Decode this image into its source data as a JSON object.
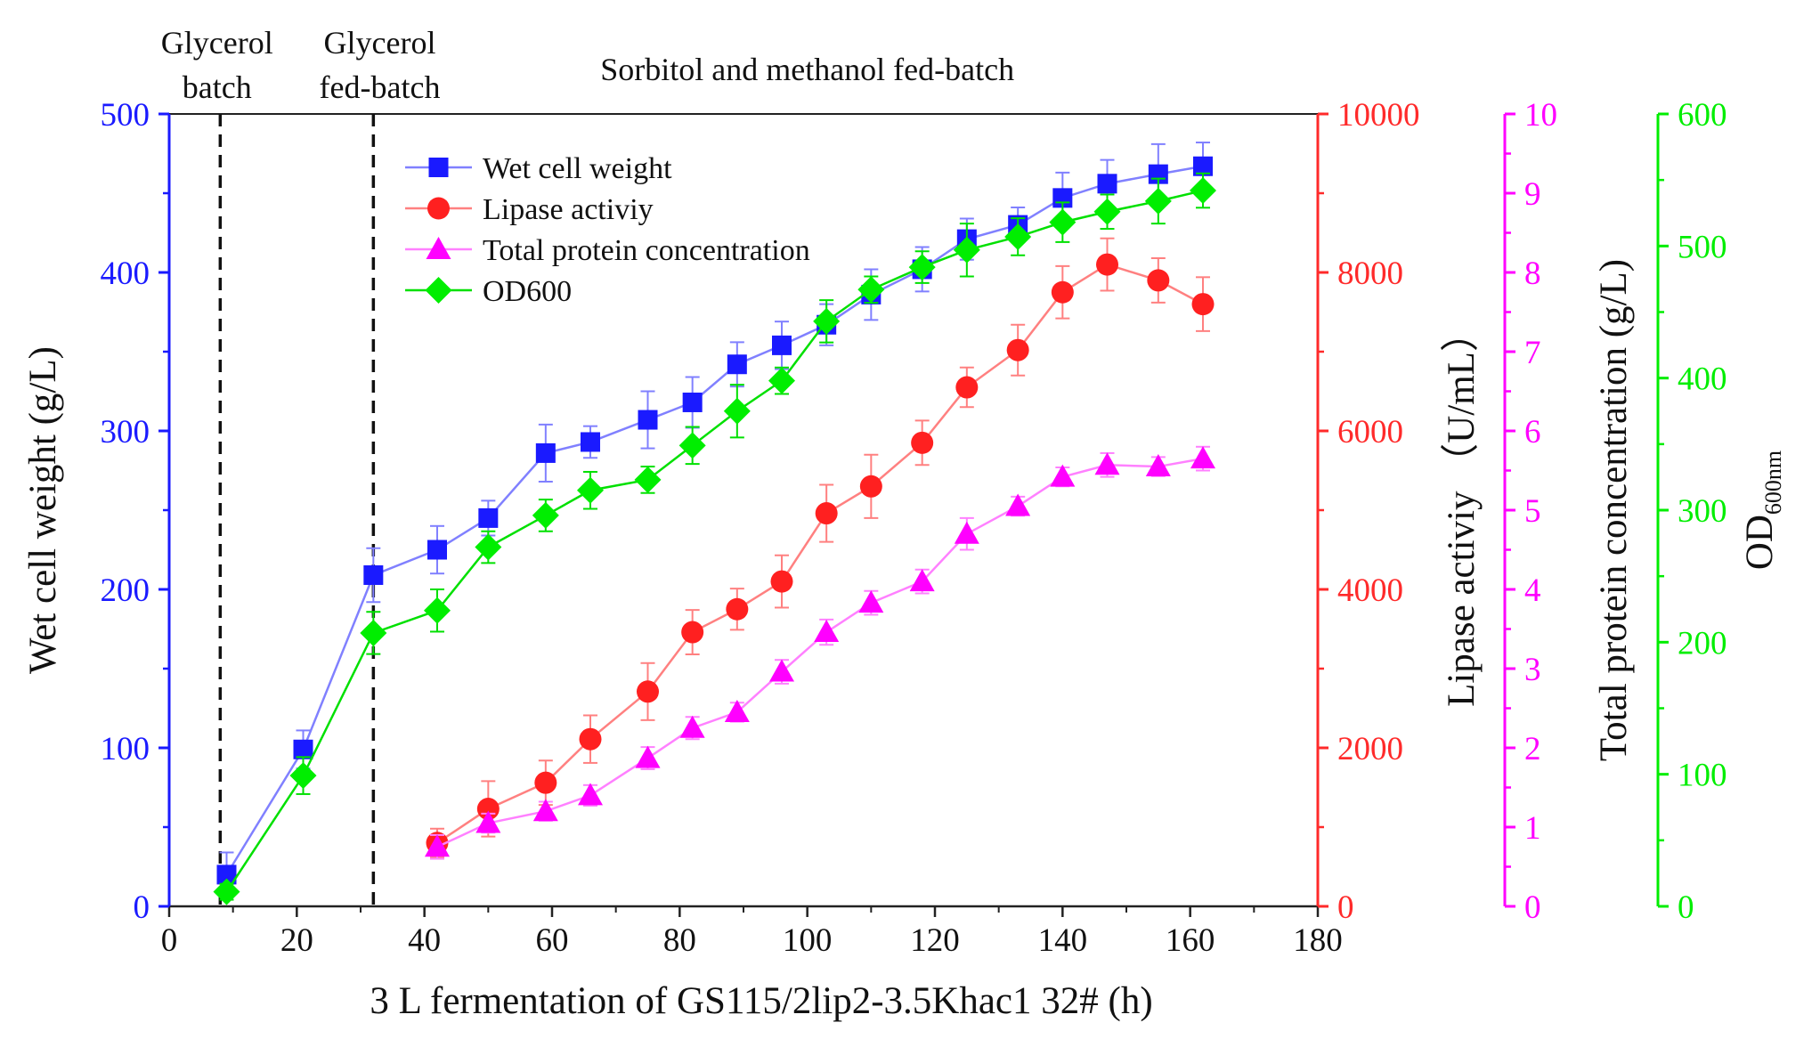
{
  "chart_data": {
    "type": "line",
    "xlabel": "3 L fermentation of GS115/2lip2-3.5Khac1 32# (h)",
    "x_ticks": [
      "0",
      "20",
      "40",
      "60",
      "80",
      "100",
      "120",
      "140",
      "160",
      "180"
    ],
    "xlim": [
      0,
      180
    ],
    "phases": [
      {
        "label_lines": [
          "Glycerol",
          "batch"
        ],
        "x_center": 7.5
      },
      {
        "label_lines": [
          "Glycerol",
          "fed-batch"
        ],
        "x_center": 33
      },
      {
        "label_lines": [
          "Sorbitol and methanol fed-batch"
        ],
        "x_center": 100
      }
    ],
    "phase_boundaries": [
      8,
      32
    ],
    "axes": [
      {
        "id": "wcw",
        "label": "Wet cell weight (g/L)",
        "ylim": [
          0,
          500
        ],
        "ticks": [
          "0",
          "100",
          "200",
          "300",
          "400",
          "500"
        ],
        "color": "#1a1aff"
      },
      {
        "id": "lipase",
        "label": "Lipase activiy （U/mL）",
        "ylim": [
          0,
          10000
        ],
        "ticks": [
          "0",
          "2000",
          "4000",
          "6000",
          "8000",
          "10000"
        ],
        "color": "#ff2a2a"
      },
      {
        "id": "protein",
        "label": "Total protein concentration (g/L)",
        "ylim": [
          0,
          10
        ],
        "ticks": [
          "0",
          "1",
          "2",
          "3",
          "4",
          "5",
          "6",
          "7",
          "8",
          "9",
          "10"
        ],
        "color": "#ff00ff"
      },
      {
        "id": "od",
        "label_main": "OD",
        "label_sub": "600nm",
        "ylim": [
          0,
          600
        ],
        "ticks": [
          "0",
          "100",
          "200",
          "300",
          "400",
          "500",
          "600"
        ],
        "color": "#00ee00"
      }
    ],
    "series": [
      {
        "name": "Wet cell weight",
        "axis": "wcw",
        "marker": "square",
        "color": "#1a1aff",
        "line_color": "#8080ff",
        "x": [
          9,
          21,
          32,
          42,
          50,
          59,
          66,
          75,
          82,
          89,
          96,
          103,
          110,
          118,
          125,
          133,
          140,
          147,
          155,
          162
        ],
        "y": [
          20,
          99,
          209,
          225,
          245,
          286,
          293,
          307,
          318,
          342,
          354,
          367,
          386,
          402,
          421,
          430,
          447,
          456,
          462,
          467
        ],
        "err": [
          14,
          12,
          17,
          15,
          11,
          18,
          10,
          18,
          16,
          14,
          15,
          13,
          16,
          14,
          13,
          11,
          16,
          15,
          19,
          15
        ]
      },
      {
        "name": "Lipase activiy",
        "axis": "lipase",
        "marker": "circle",
        "color": "#ff2020",
        "line_color": "#ff8080",
        "x": [
          42,
          50,
          59,
          66,
          75,
          82,
          89,
          96,
          103,
          110,
          118,
          125,
          133,
          140,
          147,
          155,
          162
        ],
        "y": [
          800,
          1230,
          1560,
          2110,
          2710,
          3460,
          3750,
          4100,
          4960,
          5300,
          5850,
          6550,
          7020,
          7750,
          8100,
          7900,
          7600
        ],
        "err": [
          180,
          350,
          280,
          300,
          360,
          280,
          260,
          330,
          360,
          400,
          280,
          250,
          320,
          330,
          330,
          280,
          340
        ]
      },
      {
        "name": "Total protein concentration",
        "axis": "protein",
        "marker": "triangle",
        "color": "#ff00ff",
        "line_color": "#ff80ff",
        "x": [
          42,
          50,
          59,
          66,
          75,
          82,
          89,
          96,
          103,
          110,
          118,
          125,
          133,
          140,
          147,
          155,
          162
        ],
        "y": [
          0.75,
          1.05,
          1.2,
          1.4,
          1.87,
          2.25,
          2.45,
          2.96,
          3.46,
          3.83,
          4.1,
          4.7,
          5.05,
          5.42,
          5.57,
          5.55,
          5.65
        ],
        "err": [
          0.15,
          0.12,
          0.12,
          0.13,
          0.14,
          0.14,
          0.12,
          0.15,
          0.16,
          0.15,
          0.15,
          0.2,
          0.12,
          0.12,
          0.15,
          0.12,
          0.15
        ]
      },
      {
        "name": "OD600",
        "axis": "od",
        "marker": "diamond",
        "color": "#00ee00",
        "line_color": "#00e000",
        "x": [
          9,
          21,
          32,
          42,
          50,
          59,
          66,
          75,
          82,
          89,
          96,
          103,
          110,
          118,
          125,
          133,
          140,
          147,
          155,
          162
        ],
        "y": [
          11,
          99,
          207,
          224,
          272,
          296,
          315,
          323,
          349,
          375,
          398,
          443,
          467,
          484,
          497,
          507,
          518,
          526,
          534,
          542
        ],
        "err": [
          6,
          14,
          16,
          16,
          12,
          12,
          14,
          10,
          14,
          20,
          10,
          16,
          10,
          12,
          20,
          14,
          15,
          13,
          17,
          13
        ]
      }
    ],
    "legend_placement": "top-left inside plot"
  }
}
